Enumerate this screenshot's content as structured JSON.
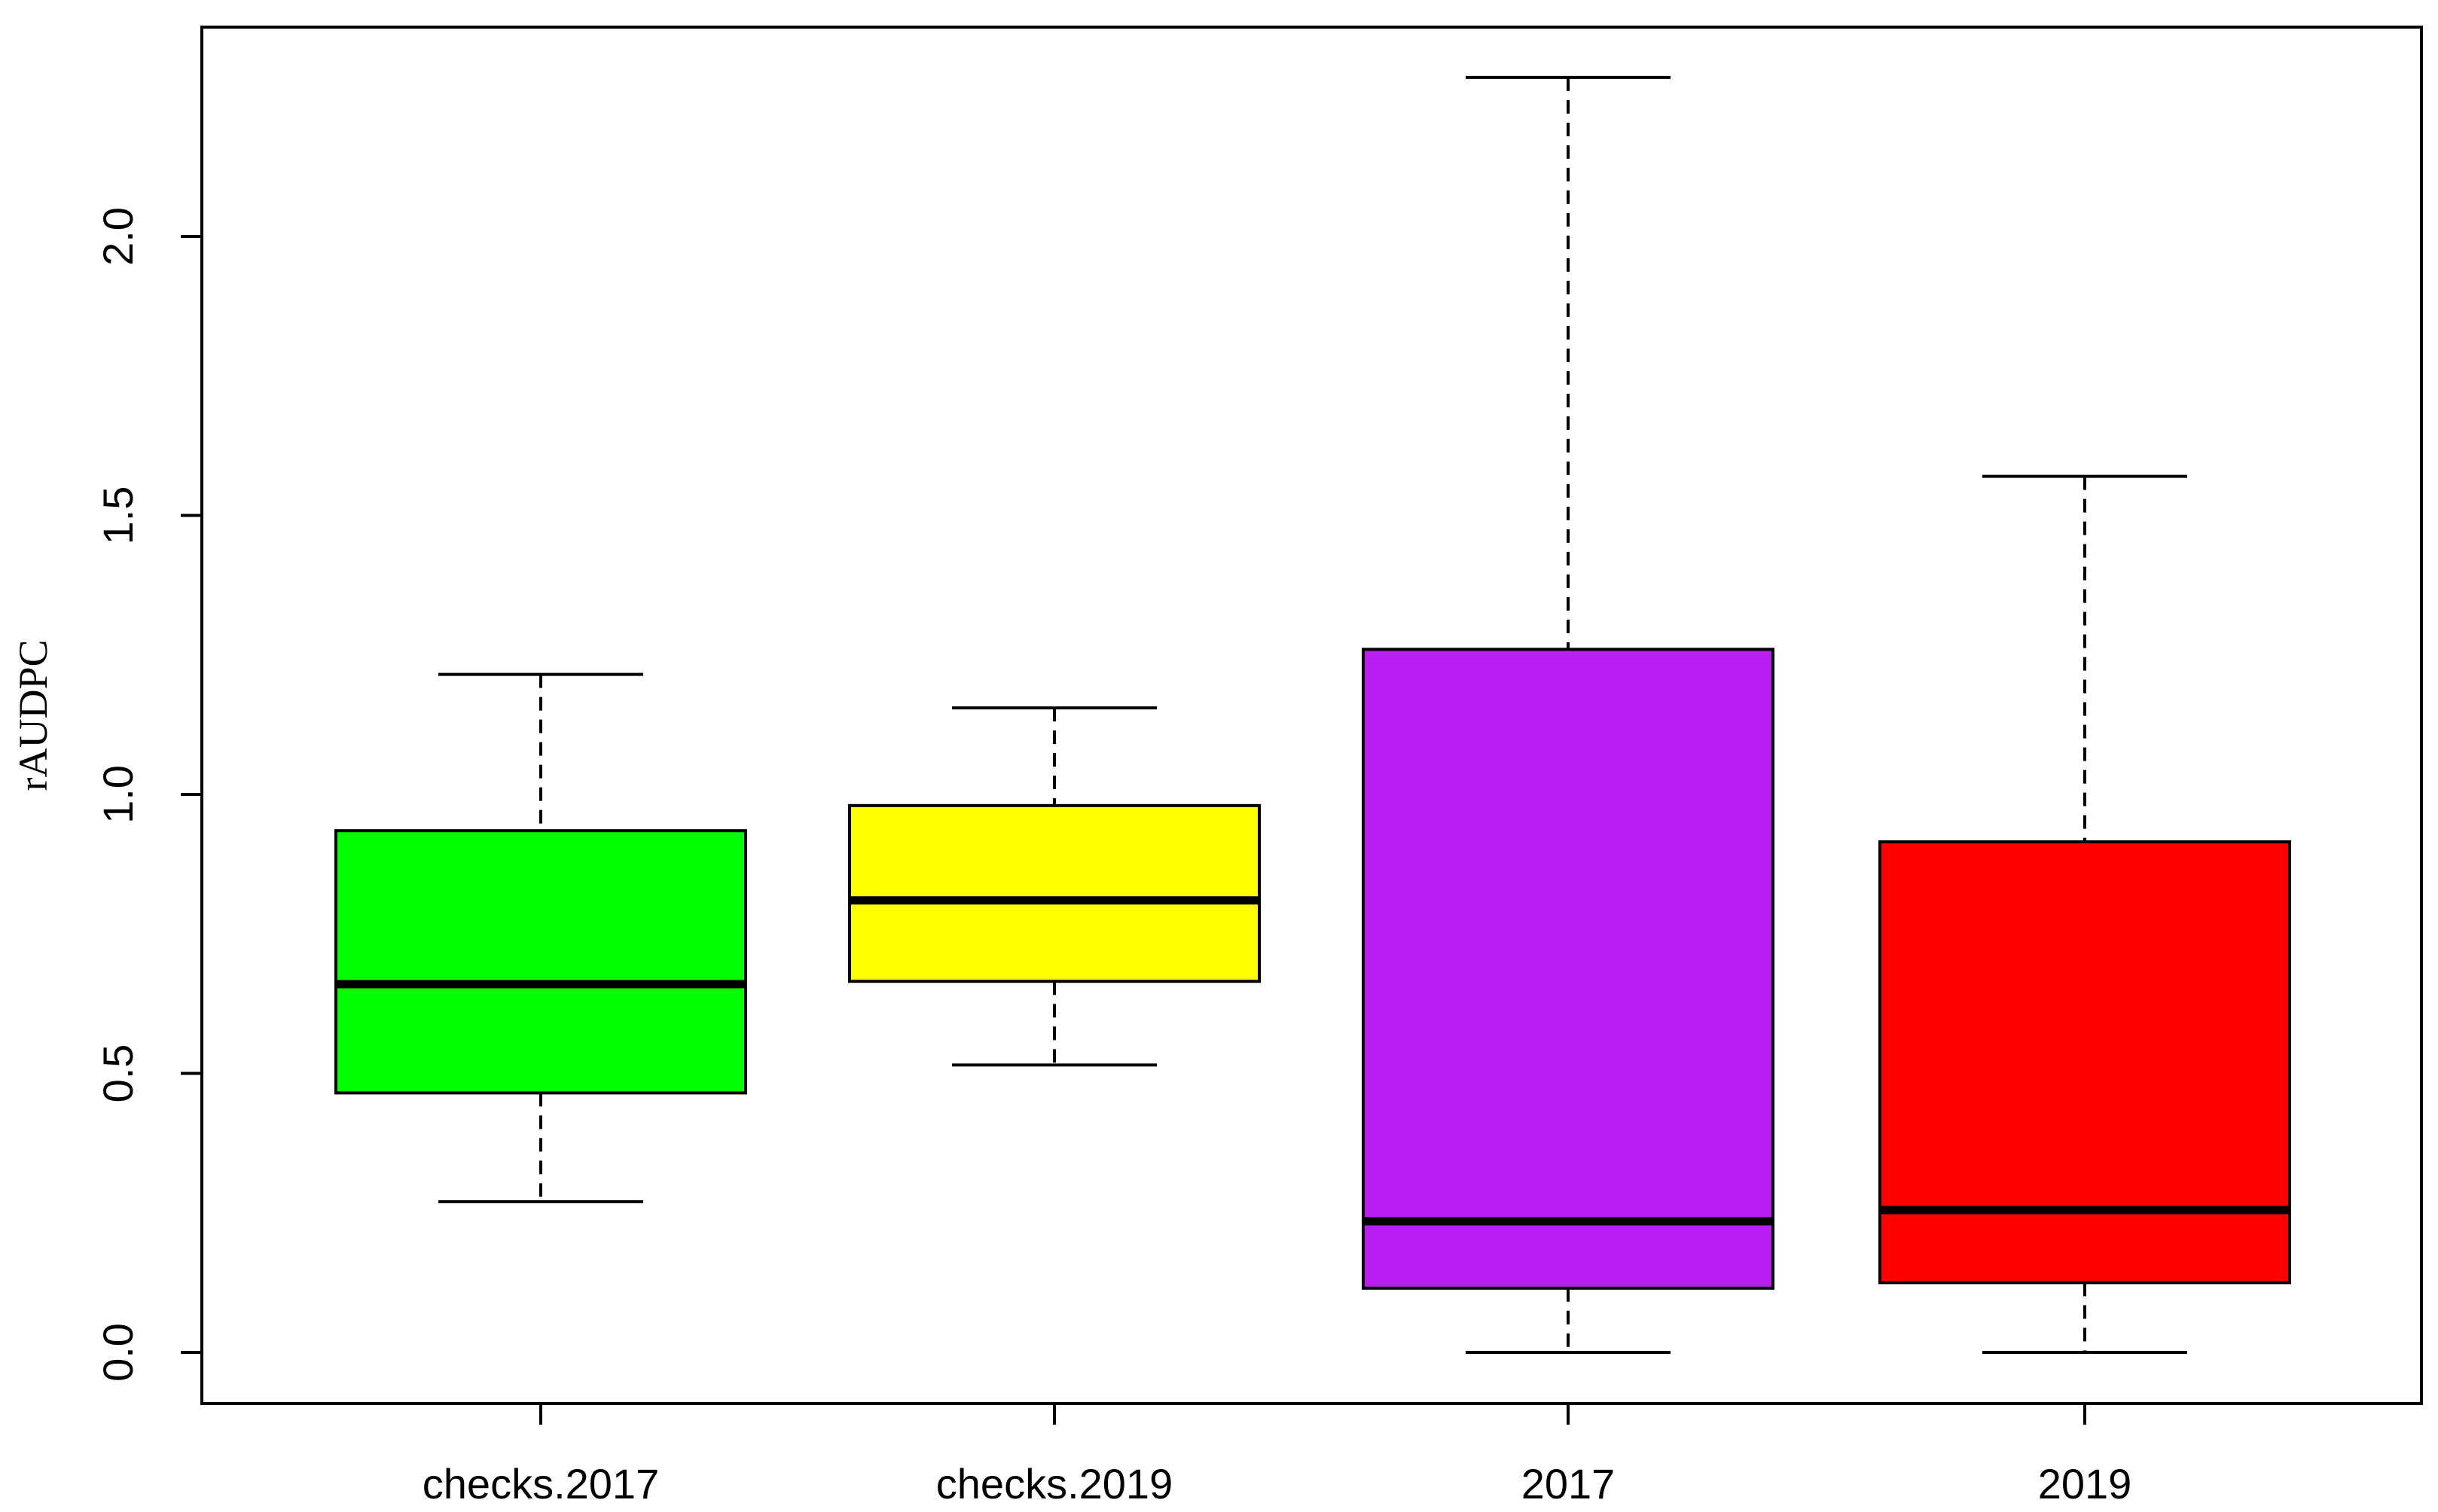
{
  "chart_data": {
    "type": "boxplot",
    "ylabel": "rAUDPC",
    "xlabel": "",
    "ylim": [
      -0.09,
      2.38
    ],
    "yticks": [
      0.0,
      0.5,
      1.0,
      1.5,
      2.0
    ],
    "ytick_labels": [
      "0.0",
      "0.5",
      "1.0",
      "1.5",
      "2.0"
    ],
    "grid": false,
    "categories": [
      "checks.2017",
      "checks.2019",
      "2017",
      "2019"
    ],
    "boxes": [
      {
        "label": "checks.2017",
        "color": "#00FF00",
        "whisker_low": 0.27,
        "q1": 0.465,
        "median": 0.66,
        "q3": 0.935,
        "whisker_high": 1.215
      },
      {
        "label": "checks.2019",
        "color": "#FFFF00",
        "whisker_low": 0.515,
        "q1": 0.665,
        "median": 0.81,
        "q3": 0.98,
        "whisker_high": 1.155
      },
      {
        "label": "2017",
        "color": "#BB1EF3",
        "whisker_low": 0.0,
        "q1": 0.115,
        "median": 0.235,
        "q3": 1.26,
        "whisker_high": 2.285
      },
      {
        "label": "2019",
        "color": "#FF0000",
        "whisker_low": 0.0,
        "q1": 0.125,
        "median": 0.255,
        "q3": 0.915,
        "whisker_high": 1.57
      }
    ]
  }
}
